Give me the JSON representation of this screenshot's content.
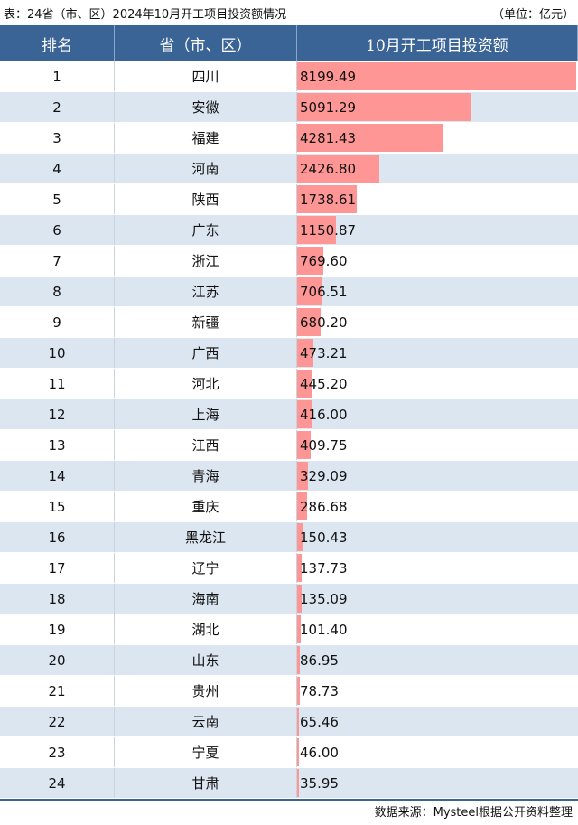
{
  "title": "表：24省（市、区）2024年10月开工项目投资额情况",
  "unit": "（单位：亿元）",
  "source": "数据来源：Mysteel根据公开资料整理",
  "colors": {
    "header": "#3b6496",
    "bar": "#ff9696",
    "stripe": "#dce6f1"
  },
  "chart_data": {
    "type": "table",
    "columns": [
      "排名",
      "省（市、区）",
      "10月开工项目投资额"
    ],
    "rows": [
      [
        "1",
        "四川",
        8199.49
      ],
      [
        "2",
        "安徽",
        5091.29
      ],
      [
        "3",
        "福建",
        4281.43
      ],
      [
        "4",
        "河南",
        2426.8
      ],
      [
        "5",
        "陕西",
        1738.61
      ],
      [
        "6",
        "广东",
        1150.87
      ],
      [
        "7",
        "浙江",
        769.6
      ],
      [
        "8",
        "江苏",
        706.51
      ],
      [
        "9",
        "新疆",
        680.2
      ],
      [
        "10",
        "广西",
        473.21
      ],
      [
        "11",
        "河北",
        445.2
      ],
      [
        "12",
        "上海",
        416.0
      ],
      [
        "13",
        "江西",
        409.75
      ],
      [
        "14",
        "青海",
        329.09
      ],
      [
        "15",
        "重庆",
        286.68
      ],
      [
        "16",
        "黑龙江",
        150.43
      ],
      [
        "17",
        "辽宁",
        137.73
      ],
      [
        "18",
        "海南",
        135.09
      ],
      [
        "19",
        "湖北",
        101.4
      ],
      [
        "20",
        "山东",
        86.95
      ],
      [
        "21",
        "贵州",
        78.73
      ],
      [
        "22",
        "云南",
        65.46
      ],
      [
        "23",
        "宁夏",
        46.0
      ],
      [
        "24",
        "甘肃",
        35.95
      ]
    ]
  }
}
